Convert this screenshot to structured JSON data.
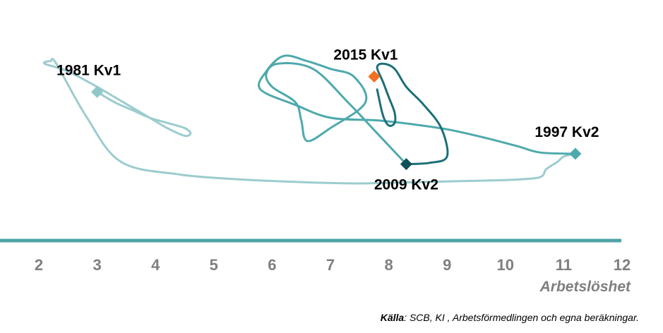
{
  "chart_data": {
    "type": "line",
    "title": "",
    "xlabel": "Arbetslöshet",
    "ylabel": "",
    "xlim": [
      2,
      12
    ],
    "x_ticks": [
      "2",
      "3",
      "4",
      "5",
      "6",
      "7",
      "8",
      "9",
      "10",
      "11",
      "12"
    ],
    "grid": false,
    "legend": "none",
    "y_axis_visible": false,
    "series": [
      {
        "color": "#9ccccf",
        "x": [
          3.0,
          3.3,
          3.6,
          3.9,
          4.2,
          4.5,
          4.6,
          4.5,
          4.2,
          3.9,
          3.6,
          3.3,
          3.0,
          2.5,
          2.1,
          2.2,
          2.3,
          2.8,
          3.4,
          4.4,
          5.5,
          6.5,
          7.5,
          8.5,
          9.5,
          10.2,
          10.6,
          10.7,
          10.9,
          11.0,
          11.2
        ],
        "y": [
          2.4,
          2.0,
          1.7,
          1.4,
          1.2,
          1.0,
          0.8,
          0.7,
          1.0,
          1.4,
          1.8,
          2.2,
          2.6,
          3.2,
          3.5,
          3.6,
          3.5,
          1.5,
          -0.3,
          -0.8,
          -1.0,
          -1.1,
          -1.15,
          -1.1,
          -1.05,
          -1.0,
          -0.9,
          -0.6,
          -0.3,
          -0.1,
          0.0
        ]
      },
      {
        "color": "#4ea9ad",
        "x": [
          11.2,
          10.6,
          10.2,
          9.6,
          9.0,
          8.4,
          7.8,
          7.0,
          6.4,
          5.8,
          5.9,
          6.2,
          6.6,
          7.0,
          7.4,
          7.6,
          7.0,
          6.6,
          6.5,
          6.4,
          6.0,
          5.9,
          6.1,
          6.7,
          7.3,
          7.8,
          8.3
        ],
        "y": [
          0.0,
          0.05,
          0.3,
          0.65,
          0.95,
          1.15,
          1.3,
          1.4,
          1.9,
          2.5,
          3.2,
          3.8,
          3.6,
          3.3,
          3.0,
          2.0,
          1.0,
          0.5,
          1.3,
          2.0,
          2.6,
          3.1,
          3.5,
          3.3,
          2.0,
          0.8,
          -0.4
        ]
      },
      {
        "color": "#1c6f78",
        "x": [
          8.3,
          8.7,
          9.0,
          8.9,
          8.6,
          8.3,
          8.1,
          7.9,
          7.8,
          7.9,
          8.0,
          8.1,
          8.1,
          8.0,
          7.9,
          7.8
        ],
        "y": [
          -0.4,
          -0.35,
          -0.1,
          1.0,
          1.9,
          2.6,
          3.3,
          3.5,
          3.35,
          2.8,
          2.2,
          1.6,
          1.2,
          1.1,
          1.5,
          2.5
        ]
      }
    ],
    "highlighted_points": [
      {
        "label": "1981 Kv1",
        "x": 3.0,
        "y": 2.4,
        "color": "#8fc8c8",
        "label_pos": "above"
      },
      {
        "label": "1997 Kv2",
        "x": 11.2,
        "y": 0.0,
        "color": "#4ea9ad",
        "label_pos": "above"
      },
      {
        "label": "2009 Kv2",
        "x": 8.3,
        "y": -0.4,
        "color": "#0f4f57",
        "label_pos": "below"
      },
      {
        "label": "2015 Kv1",
        "x": 7.75,
        "y": 3.0,
        "color": "#f36f21",
        "label_pos": "above"
      }
    ],
    "axis_line_color": "#4fa4a8",
    "source": {
      "key": "Källa",
      "text": ": SCB, KI , Arbetsförmedlingen och egna beräkningar."
    }
  }
}
